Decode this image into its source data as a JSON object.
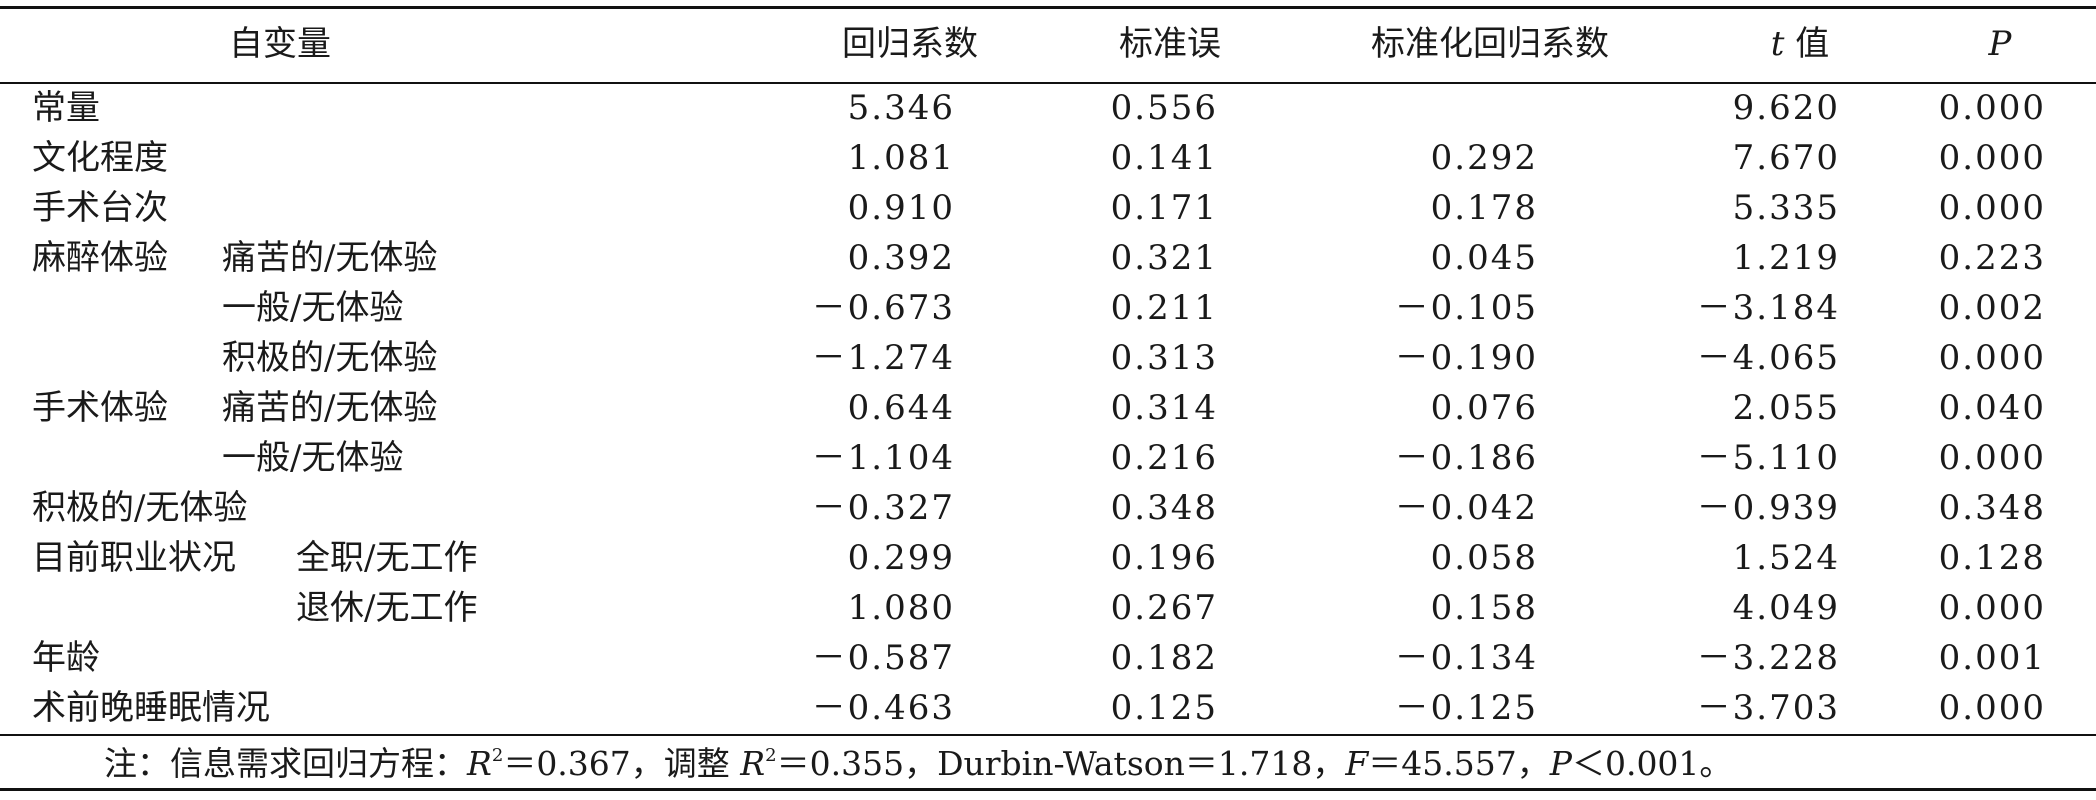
{
  "table": {
    "headers": {
      "var": "自变量",
      "coef": "回归系数",
      "se": "标准误",
      "std_coef": "标准化回归系数",
      "t_italic": "t",
      "t_rest": " 值",
      "p": "P"
    },
    "rows": [
      {
        "l1": "常量",
        "l2": "",
        "coef": "5.346",
        "se": "0.556",
        "std": "",
        "t": "9.620",
        "p": "0.000"
      },
      {
        "l1": "文化程度",
        "l2": "",
        "coef": "1.081",
        "se": "0.141",
        "std": "0.292",
        "t": "7.670",
        "p": "0.000"
      },
      {
        "l1": "手术台次",
        "l2": "",
        "coef": "0.910",
        "se": "0.171",
        "std": "0.178",
        "t": "5.335",
        "p": "0.000"
      },
      {
        "l1": "麻醉体验",
        "l2": "痛苦的/无体验",
        "coef": "0.392",
        "se": "0.321",
        "std": "0.045",
        "t": "1.219",
        "p": "0.223"
      },
      {
        "l1": "",
        "l2": "一般/无体验",
        "coef": "－0.673",
        "se": "0.211",
        "std": "－0.105",
        "t": "－3.184",
        "p": "0.002"
      },
      {
        "l1": "",
        "l2": "积极的/无体验",
        "coef": "－1.274",
        "se": "0.313",
        "std": "－0.190",
        "t": "－4.065",
        "p": "0.000"
      },
      {
        "l1": "手术体验",
        "l2": "痛苦的/无体验",
        "coef": "0.644",
        "se": "0.314",
        "std": "0.076",
        "t": "2.055",
        "p": "0.040"
      },
      {
        "l1": "",
        "l2": "一般/无体验",
        "coef": "－1.104",
        "se": "0.216",
        "std": "－0.186",
        "t": "－5.110",
        "p": "0.000"
      },
      {
        "l1": "积极的/无体验",
        "l2": "",
        "coef": "－0.327",
        "se": "0.348",
        "std": "－0.042",
        "t": "－0.939",
        "p": "0.348"
      },
      {
        "l1": "目前职业状况",
        "l2": "全职/无工作",
        "coef": "0.299",
        "se": "0.196",
        "std": "0.058",
        "t": "1.524",
        "p": "0.128"
      },
      {
        "l1": "",
        "l2": "退休/无工作",
        "coef": "1.080",
        "se": "0.267",
        "std": "0.158",
        "t": "4.049",
        "p": "0.000"
      },
      {
        "l1": "年龄",
        "l2": "",
        "coef": "－0.587",
        "se": "0.182",
        "std": "－0.134",
        "t": "－3.228",
        "p": "0.001"
      },
      {
        "l1": "术前晚睡眠情况",
        "l2": "",
        "coef": "－0.463",
        "se": "0.125",
        "std": "－0.125",
        "t": "－3.703",
        "p": "0.000"
      }
    ]
  },
  "note": {
    "prefix": "注：信息需求回归方程：",
    "r": "R",
    "sup1": "2",
    "eq1": "＝0.367，调整 ",
    "r2": "R",
    "sup2": "2",
    "eq2": "＝0.355，Durbin-Watson＝1.718，",
    "f": "F",
    "eq3": "＝45.557，",
    "p": "P",
    "eq4": "＜0.001。"
  }
}
